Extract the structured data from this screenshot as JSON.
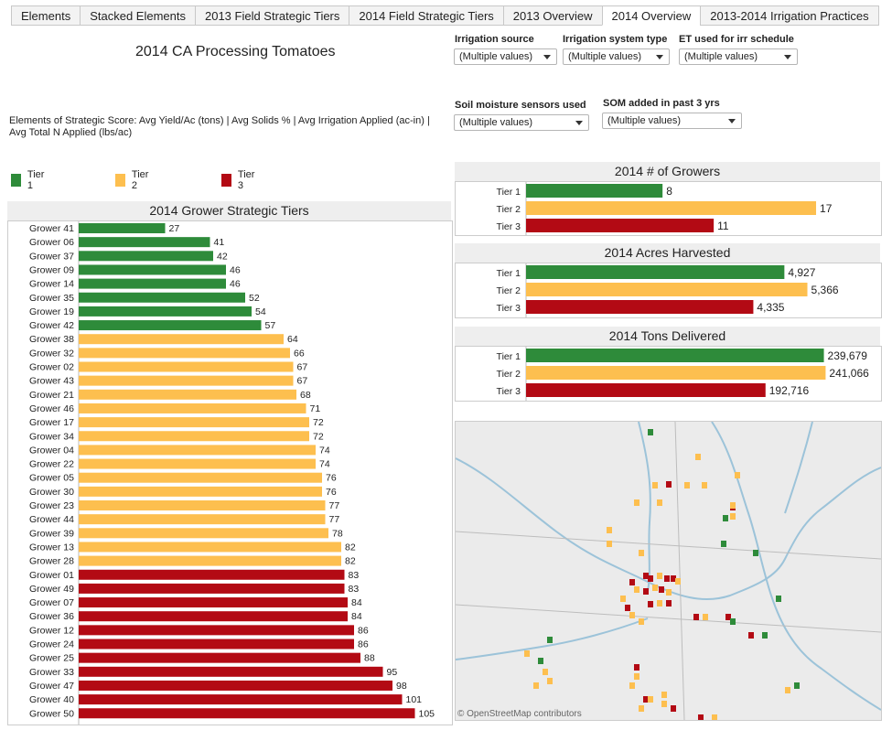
{
  "tabs": [
    {
      "label": "Elements"
    },
    {
      "label": "Stacked Elements"
    },
    {
      "label": "2013 Field Strategic Tiers"
    },
    {
      "label": "2014 Field Strategic Tiers"
    },
    {
      "label": "2013 Overview"
    },
    {
      "label": "2014 Overview"
    },
    {
      "label": "2013-2014 Irrigation Practices"
    }
  ],
  "dashboard_title": "2014 CA Processing Tomatoes",
  "filters": {
    "irrigation_source": {
      "label": "Irrigation source",
      "value": "(Multiple values)"
    },
    "irrigation_system_type": {
      "label": "Irrigation system type",
      "value": "(Multiple values)"
    },
    "et_used": {
      "label": "ET used for irr schedule",
      "value": "(Multiple values)"
    },
    "soil_moisture": {
      "label": "Soil moisture sensors used",
      "value": "(Multiple values)"
    },
    "som_added": {
      "label": "SOM added in past 3 yrs",
      "value": "(Multiple values)"
    }
  },
  "elements_text": "Elements of Strategic Score: Avg Yield/Ac (tons) | Avg Solids % | Avg Irrigation Applied (ac-in) | Avg Total N Applied (lbs/ac)",
  "legend": [
    {
      "label": "Tier 1",
      "color": "#2e8b3a"
    },
    {
      "label": "Tier 2",
      "color": "#fdbf4f"
    },
    {
      "label": "Tier 3",
      "color": "#b30a14"
    }
  ],
  "map_credit": "© OpenStreetMap contributors",
  "chart_data": [
    {
      "type": "bar",
      "orientation": "horizontal",
      "title": "2014 Grower Strategic Tiers",
      "categories": [
        "Grower 41",
        "Grower 06",
        "Grower 37",
        "Grower 09",
        "Grower 14",
        "Grower 35",
        "Grower 19",
        "Grower 42",
        "Grower 38",
        "Grower 32",
        "Grower 02",
        "Grower 43",
        "Grower 21",
        "Grower 46",
        "Grower 17",
        "Grower 34",
        "Grower 04",
        "Grower 22",
        "Grower 05",
        "Grower 30",
        "Grower 23",
        "Grower 44",
        "Grower 39",
        "Grower 13",
        "Grower 28",
        "Grower 01",
        "Grower 49",
        "Grower 07",
        "Grower 36",
        "Grower 12",
        "Grower 24",
        "Grower 25",
        "Grower 33",
        "Grower 47",
        "Grower 40",
        "Grower 50"
      ],
      "values": [
        27,
        41,
        42,
        46,
        46,
        52,
        54,
        57,
        64,
        66,
        67,
        67,
        68,
        71,
        72,
        72,
        74,
        74,
        76,
        76,
        77,
        77,
        78,
        82,
        82,
        83,
        83,
        84,
        84,
        86,
        86,
        88,
        95,
        98,
        101,
        105
      ],
      "tiers": [
        1,
        1,
        1,
        1,
        1,
        1,
        1,
        1,
        2,
        2,
        2,
        2,
        2,
        2,
        2,
        2,
        2,
        2,
        2,
        2,
        2,
        2,
        2,
        2,
        2,
        3,
        3,
        3,
        3,
        3,
        3,
        3,
        3,
        3,
        3,
        3
      ],
      "xlim": [
        0,
        125
      ]
    },
    {
      "type": "bar",
      "orientation": "horizontal",
      "title": "2014 # of Growers",
      "categories": [
        "Tier 1",
        "Tier 2",
        "Tier 3"
      ],
      "values": [
        8,
        17,
        11
      ],
      "labels": [
        "8",
        "17",
        "11"
      ],
      "xlim": [
        0,
        18.5
      ]
    },
    {
      "type": "bar",
      "orientation": "horizontal",
      "title": "2014 Acres Harvested",
      "categories": [
        "Tier 1",
        "Tier 2",
        "Tier 3"
      ],
      "values": [
        4927,
        5366,
        4335
      ],
      "labels": [
        "4,927",
        "5,366",
        "4,335"
      ],
      "xlim": [
        0,
        6020
      ]
    },
    {
      "type": "bar",
      "orientation": "horizontal",
      "title": "2014 Tons Delivered",
      "categories": [
        "Tier 1",
        "Tier 2",
        "Tier 3"
      ],
      "values": [
        239679,
        241066,
        192716
      ],
      "labels": [
        "239,679",
        "241,066",
        "192,716"
      ],
      "xlim": [
        0,
        254000
      ]
    }
  ]
}
